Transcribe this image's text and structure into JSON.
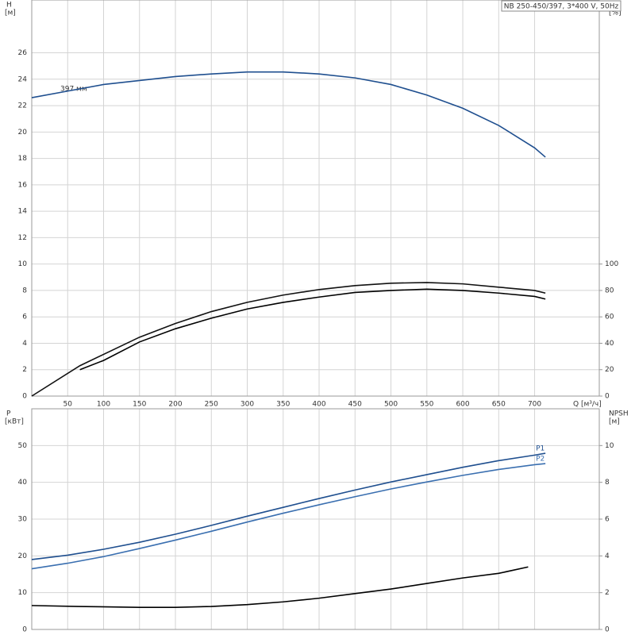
{
  "title_box": "NB 250-450/397, 3*400 V, 50Hz",
  "chart_data": [
    {
      "type": "line",
      "xlabel": "Q [м³/ч]",
      "ylabel": "H",
      "ylabel_unit": "[м]",
      "y2label": "eta",
      "y2label_unit": "[%]",
      "annotation": "397 мм",
      "xlim": [
        0,
        790
      ],
      "xticks": [
        0,
        50,
        100,
        150,
        200,
        250,
        300,
        350,
        400,
        450,
        500,
        550,
        600,
        650,
        700
      ],
      "ylim": [
        0,
        30
      ],
      "yticks": [
        0,
        2,
        4,
        6,
        8,
        10,
        12,
        14,
        16,
        18,
        20,
        22,
        24,
        26
      ],
      "y2lim": [
        0,
        300
      ],
      "y2ticks": [
        0,
        20,
        40,
        60,
        80,
        100
      ],
      "grid": true,
      "series": [
        {
          "color": "#1f4f8f",
          "x": [
            0,
            50,
            100,
            150,
            200,
            250,
            300,
            350,
            400,
            450,
            500,
            550,
            600,
            650,
            700,
            715
          ],
          "values": [
            22.6,
            23.1,
            23.6,
            23.9,
            24.2,
            24.4,
            24.55,
            24.55,
            24.4,
            24.1,
            23.6,
            22.8,
            21.8,
            20.5,
            18.8,
            18.1
          ]
        },
        {
          "color": "#111111",
          "axis": "y2",
          "x": [
            0,
            67,
            150,
            200,
            250,
            300,
            350,
            400,
            450,
            500,
            550,
            600,
            650,
            700,
            715
          ],
          "values": [
            0,
            23,
            44.6,
            55,
            64,
            71,
            76.5,
            80.7,
            83.7,
            85.5,
            86,
            85,
            82.5,
            80,
            78
          ]
        },
        {
          "color": "#000000",
          "axis": "y2",
          "x": [
            67,
            100,
            150,
            200,
            250,
            300,
            350,
            400,
            450,
            500,
            550,
            600,
            650,
            700,
            715
          ],
          "values": [
            20,
            27,
            41,
            51,
            59,
            66,
            71,
            75,
            78.5,
            80,
            81,
            80,
            78,
            75.5,
            73.5
          ]
        }
      ]
    },
    {
      "type": "line",
      "ylabel": "P",
      "ylabel_unit": "[кВт]",
      "y2label": "NPSH",
      "y2label_unit": "[м]",
      "xlim": [
        0,
        790
      ],
      "xticks": [
        0,
        50,
        100,
        150,
        200,
        250,
        300,
        350,
        400,
        450,
        500,
        550,
        600,
        650,
        700
      ],
      "ylim": [
        0,
        60
      ],
      "yticks": [
        0,
        10,
        20,
        30,
        40,
        50
      ],
      "y2lim": [
        0,
        12
      ],
      "y2ticks": [
        0,
        2,
        4,
        6,
        8,
        10
      ],
      "grid": true,
      "series": [
        {
          "name": "P1",
          "color": "#1f4f8f",
          "x": [
            0,
            50,
            100,
            150,
            200,
            250,
            300,
            350,
            400,
            450,
            500,
            550,
            600,
            650,
            700,
            715
          ],
          "values": [
            19.0,
            20.2,
            21.8,
            23.7,
            25.9,
            28.3,
            30.8,
            33.2,
            35.6,
            37.9,
            40.1,
            42.1,
            44.1,
            45.9,
            47.4,
            47.9
          ]
        },
        {
          "name": "P2",
          "color": "#3a6fb0",
          "x": [
            0,
            50,
            100,
            150,
            200,
            250,
            300,
            350,
            400,
            450,
            500,
            550,
            600,
            650,
            700,
            715
          ],
          "values": [
            16.5,
            18,
            19.8,
            22,
            24.3,
            26.7,
            29.2,
            31.6,
            33.9,
            36.1,
            38.2,
            40.1,
            41.9,
            43.5,
            44.8,
            45.1
          ]
        },
        {
          "color": "#000000",
          "axis": "y2",
          "x": [
            0,
            65,
            150,
            200,
            250,
            300,
            350,
            400,
            450,
            500,
            550,
            600,
            650,
            691
          ],
          "values": [
            1.3,
            1.25,
            1.2,
            1.2,
            1.25,
            1.35,
            1.5,
            1.7,
            1.95,
            2.2,
            2.5,
            2.8,
            3.05,
            3.4
          ]
        }
      ]
    }
  ]
}
